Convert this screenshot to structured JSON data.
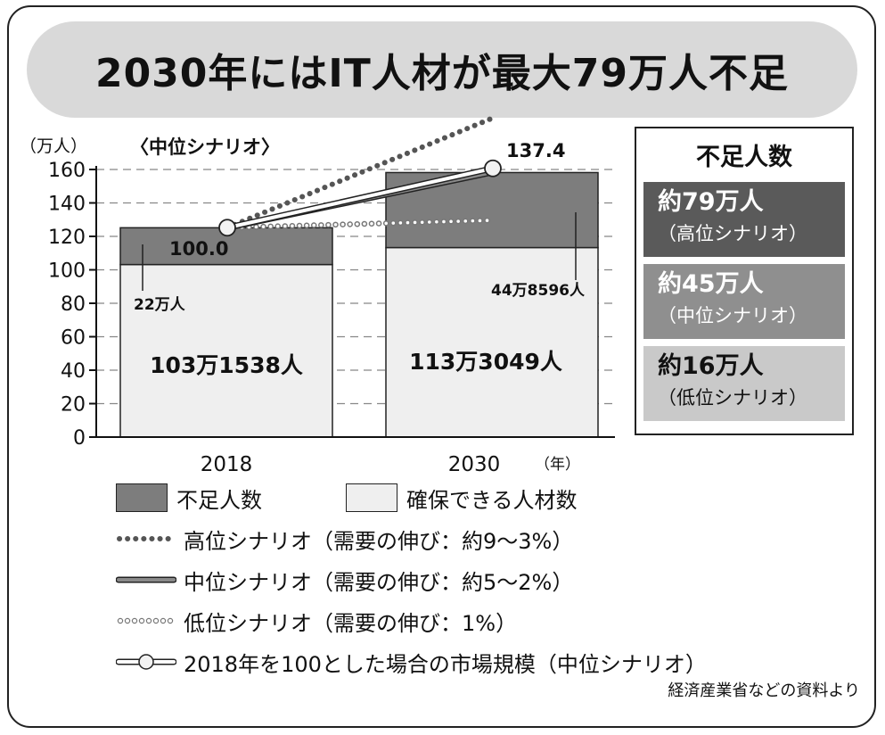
{
  "title": "2030年にはIT人材が最大79万人不足",
  "chart_data": {
    "type": "bar",
    "stacked": true,
    "y_unit_label": "（万人）",
    "scenario_label": "〈中位シナリオ〉",
    "x_unit_label": "（年）",
    "categories": [
      "2018",
      "2030"
    ],
    "ylim": [
      0,
      160
    ],
    "yticks": [
      0,
      20,
      40,
      60,
      80,
      100,
      120,
      140,
      160
    ],
    "grid": true,
    "series": [
      {
        "name": "確保できる人材数",
        "values": [
          103.1538,
          113.3049
        ],
        "color": "#efefef",
        "labels": [
          "103万1538人",
          "113万3049人"
        ]
      },
      {
        "name": "不足人数",
        "values": [
          22,
          44.8596
        ],
        "color": "#7d7d7d",
        "labels": [
          "22万人",
          "44万8596人"
        ]
      }
    ],
    "projection_lines": [
      {
        "name": "高位シナリオ（需要の伸び：約9～3%）",
        "style": "dotted-dark",
        "start": 125.2,
        "end": 190.8
      },
      {
        "name": "中位シナリオ（需要の伸び：約5～2%）",
        "style": "solid-gray",
        "start": 125.2,
        "end": 158.4
      },
      {
        "name": "低位シナリオ（需要の伸び：1%）",
        "style": "dotted-light",
        "start": 125.2,
        "end": 129.6
      }
    ],
    "market_scale": {
      "name": "2018年を100とした場合の市場規模（中位シナリオ）",
      "values": [
        100.0,
        137.4
      ],
      "labels": [
        "100.0",
        "137.4"
      ]
    },
    "legend_position": "bottom"
  },
  "summary": {
    "title": "不足人数",
    "items": [
      {
        "value": "約79万人",
        "scenario": "（高位シナリオ）",
        "color": "#5a5a5a"
      },
      {
        "value": "約45万人",
        "scenario": "（中位シナリオ）",
        "color": "#8f8f8f"
      },
      {
        "value": "約16万人",
        "scenario": "（低位シナリオ）",
        "color": "#c9c9c9"
      }
    ]
  },
  "source": "経済産業省などの資料より"
}
